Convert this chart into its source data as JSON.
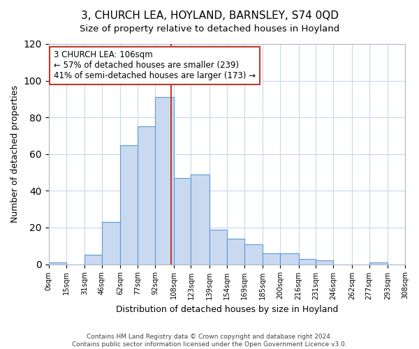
{
  "title": "3, CHURCH LEA, HOYLAND, BARNSLEY, S74 0QD",
  "subtitle": "Size of property relative to detached houses in Hoyland",
  "xlabel": "Distribution of detached houses by size in Hoyland",
  "ylabel": "Number of detached properties",
  "bin_labels": [
    "0sqm",
    "15sqm",
    "31sqm",
    "46sqm",
    "62sqm",
    "77sqm",
    "92sqm",
    "108sqm",
    "123sqm",
    "139sqm",
    "154sqm",
    "169sqm",
    "185sqm",
    "200sqm",
    "216sqm",
    "231sqm",
    "246sqm",
    "262sqm",
    "277sqm",
    "293sqm",
    "308sqm"
  ],
  "bin_edges": [
    0,
    15,
    31,
    46,
    62,
    77,
    92,
    108,
    123,
    139,
    154,
    169,
    185,
    200,
    216,
    231,
    246,
    262,
    277,
    293,
    308
  ],
  "bar_heights": [
    1,
    0,
    5,
    23,
    65,
    75,
    91,
    47,
    49,
    19,
    14,
    11,
    6,
    6,
    3,
    2,
    0,
    0,
    1,
    0
  ],
  "bar_color": "#c9d9f0",
  "bar_edge_color": "#5b9bd5",
  "marker_value": 106,
  "marker_color": "#c0392b",
  "annotation_line1": "3 CHURCH LEA: 106sqm",
  "annotation_line2": "← 57% of detached houses are smaller (239)",
  "annotation_line3": "41% of semi-detached houses are larger (173) →",
  "ylim": [
    0,
    120
  ],
  "yticks": [
    0,
    20,
    40,
    60,
    80,
    100,
    120
  ],
  "footer_line1": "Contains HM Land Registry data © Crown copyright and database right 2024.",
  "footer_line2": "Contains public sector information licensed under the Open Government Licence v3.0.",
  "background_color": "#ffffff",
  "grid_color": "#c8d8ec"
}
